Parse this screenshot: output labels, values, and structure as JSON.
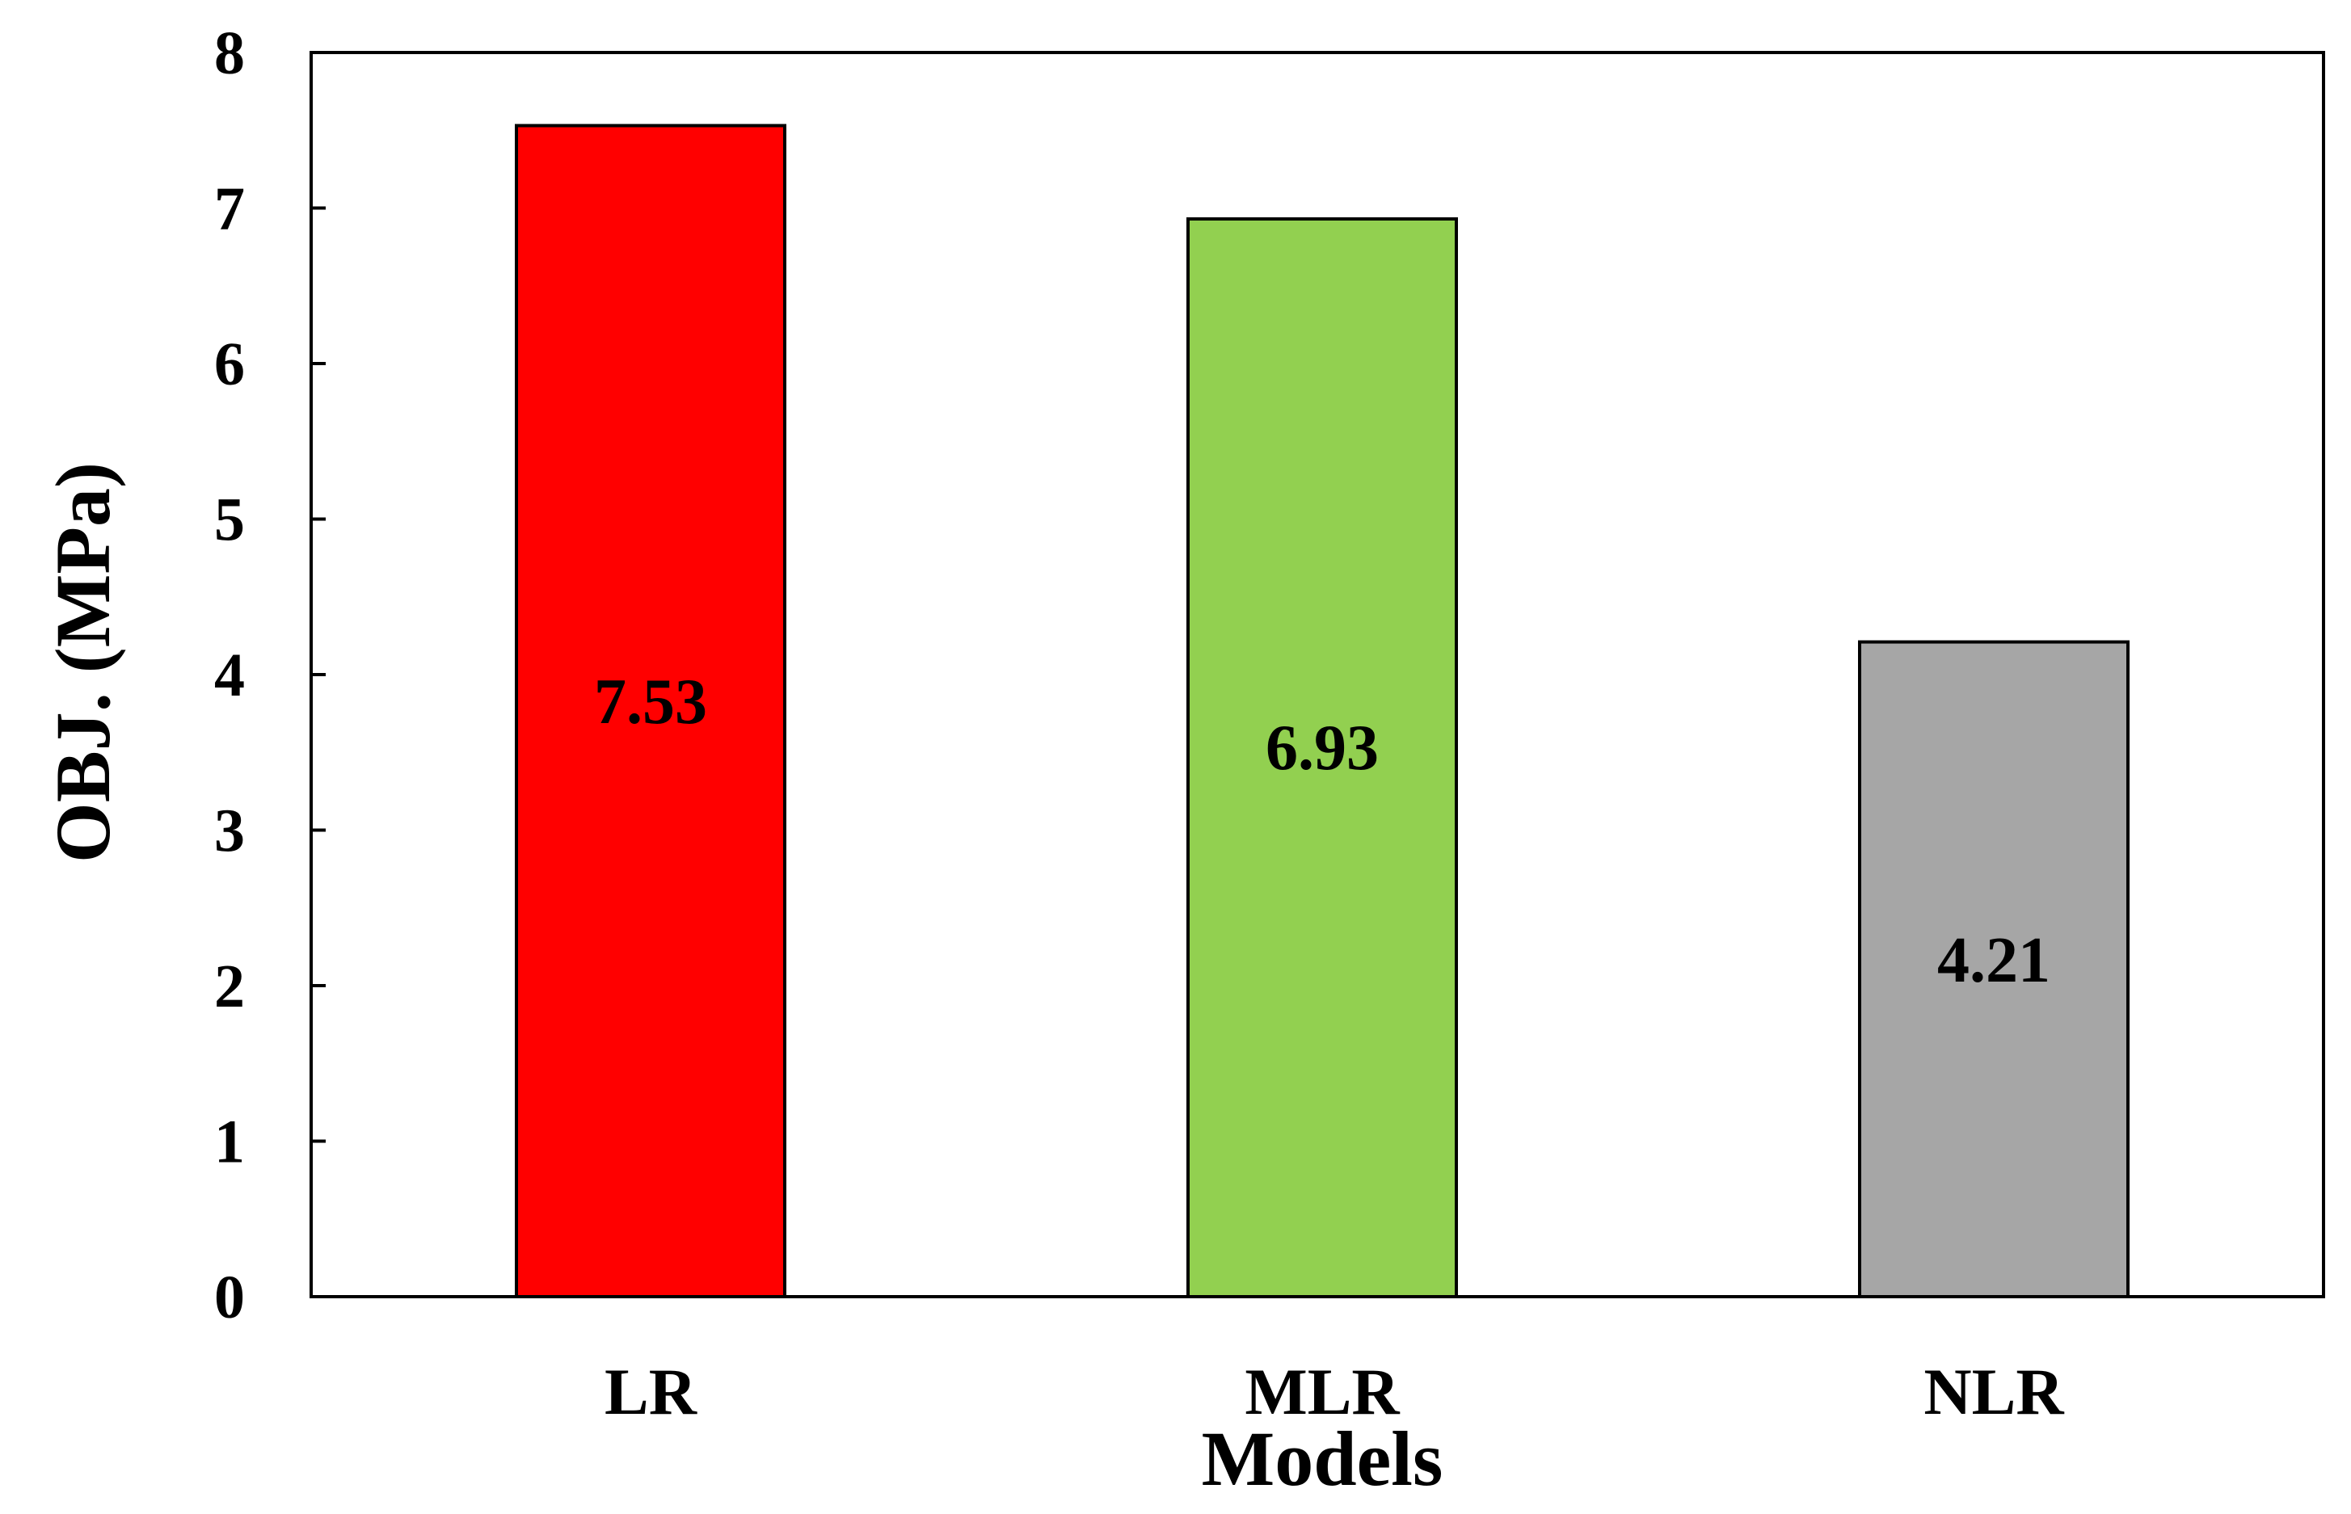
{
  "chart_data": {
    "type": "bar",
    "title": "",
    "xlabel": "Models",
    "ylabel": "OBJ. (MPa)",
    "categories": [
      "LR",
      "MLR",
      "NLR"
    ],
    "values": [
      7.53,
      6.93,
      4.21
    ],
    "data_labels": [
      "7.53",
      "6.93",
      "4.21"
    ],
    "colors": [
      "#ff0000",
      "#92d050",
      "#a6a6a6"
    ],
    "ylim": [
      0,
      8
    ],
    "yticks": [
      0,
      1,
      2,
      3,
      4,
      5,
      6,
      7,
      8
    ],
    "grid": false,
    "legend": "none"
  }
}
